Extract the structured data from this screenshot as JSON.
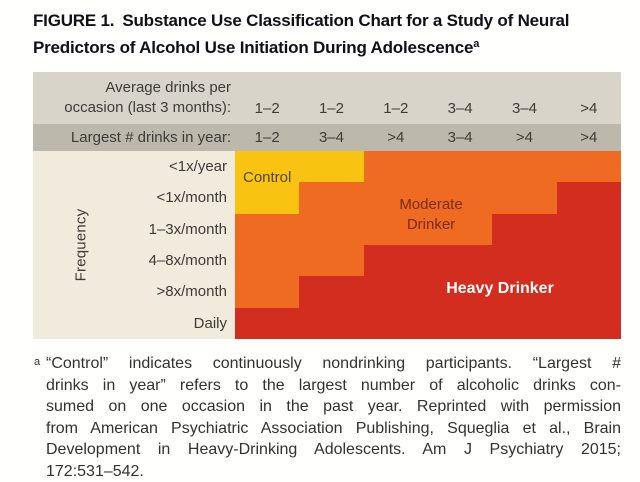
{
  "title": {
    "label": "FIGURE 1.",
    "text": "Substance Use Classification Chart for a Study of Neural Predictors of Alcohol Use Initiation During Adolescence",
    "superscript": "a"
  },
  "chart_data": {
    "type": "heatmap",
    "header_rows": [
      {
        "label_lines": [
          "Average drinks per",
          "occasion (last 3 months):"
        ],
        "values": [
          "1–2",
          "1–2",
          "1–2",
          "3–4",
          "3–4",
          ">4"
        ]
      },
      {
        "label": "Largest # drinks in year:",
        "values": [
          "1–2",
          "3–4",
          ">4",
          "3–4",
          ">4",
          ">4"
        ]
      }
    ],
    "y_axis_label": "Frequency",
    "row_labels": [
      "<1x/year",
      "<1x/month",
      "1–3x/month",
      "4–8x/month",
      ">8x/month",
      "Daily"
    ],
    "matrix": [
      [
        "control",
        "control",
        "moderate",
        "moderate",
        "moderate",
        "moderate"
      ],
      [
        "control",
        "moderate",
        "moderate",
        "moderate",
        "moderate",
        "heavy"
      ],
      [
        "moderate",
        "moderate",
        "moderate",
        "moderate",
        "heavy",
        "heavy"
      ],
      [
        "moderate",
        "moderate",
        "heavy",
        "heavy",
        "heavy",
        "heavy"
      ],
      [
        "moderate",
        "heavy",
        "heavy",
        "heavy",
        "heavy",
        "heavy"
      ],
      [
        "heavy",
        "heavy",
        "heavy",
        "heavy",
        "heavy",
        "heavy"
      ]
    ],
    "categories": {
      "control": {
        "label": "Control",
        "color": "#f8c411",
        "text_color": "#564515"
      },
      "moderate": {
        "label": "Moderate Drinker",
        "color": "#ee6b21",
        "text_color": "#7b2a0d"
      },
      "heavy": {
        "label": "Heavy Drinker",
        "color": "#d32d1f",
        "text_color": "#ffffff"
      }
    }
  },
  "footnote": {
    "marker": "a",
    "lines": [
      "“Control” indicates continuously nondrinking participants. “Largest #",
      "drinks in year” refers to the largest number of alcoholic drinks con-",
      "sumed on one occasion in the past year. Reprinted with permission",
      "from American Psychiatric Association Publishing, Squeglia et al., Brain",
      "Development in Heavy-Drinking Adolescents. Am J Psychiatry 2015;",
      "172:531–542."
    ]
  },
  "palette": {
    "page": "#fffffe",
    "band1": "#d8d4c9",
    "band2": "#bcb8ac",
    "label_col": "#f1ebdd",
    "title_text": "#101018",
    "header_text": "#3d3c37",
    "footnote_text": "#323230"
  }
}
